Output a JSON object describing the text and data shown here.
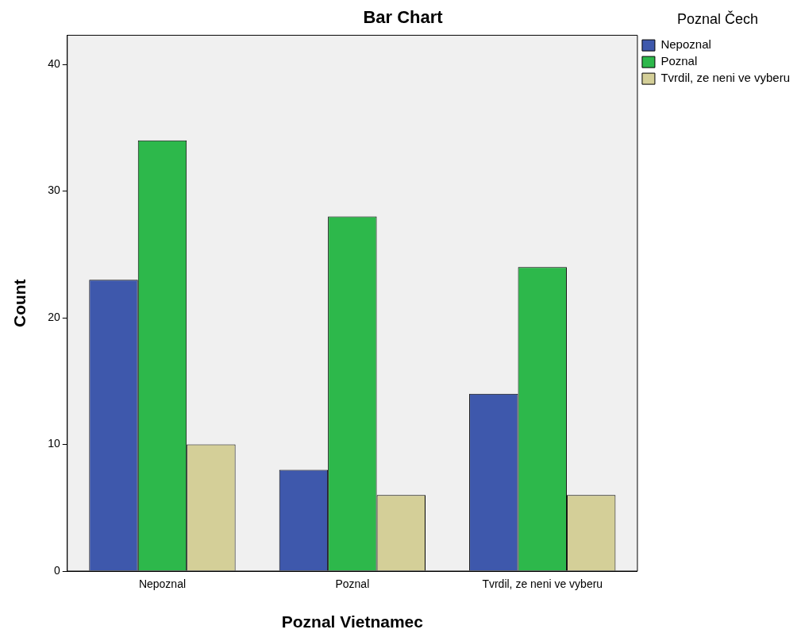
{
  "chart_data": {
    "type": "bar",
    "title": "Bar Chart",
    "xlabel": "Poznal Vietnamec",
    "ylabel": "Count",
    "legend_title": "Poznal Čech",
    "categories": [
      "Nepoznal",
      "Poznal",
      "Tvrdil, ze neni ve vyberu"
    ],
    "series": [
      {
        "name": "Nepoznal",
        "color": "#3e58ac",
        "values": [
          23,
          8,
          14
        ]
      },
      {
        "name": "Poznal",
        "color": "#2db84b",
        "values": [
          34,
          28,
          24
        ]
      },
      {
        "name": "Tvrdil, ze neni ve vyberu",
        "color": "#d4cf98",
        "values": [
          10,
          6,
          6
        ]
      }
    ],
    "ylim": [
      0,
      42.3
    ],
    "yticks": [
      0,
      10,
      20,
      30,
      40
    ],
    "grid": false,
    "legend": "top right"
  }
}
